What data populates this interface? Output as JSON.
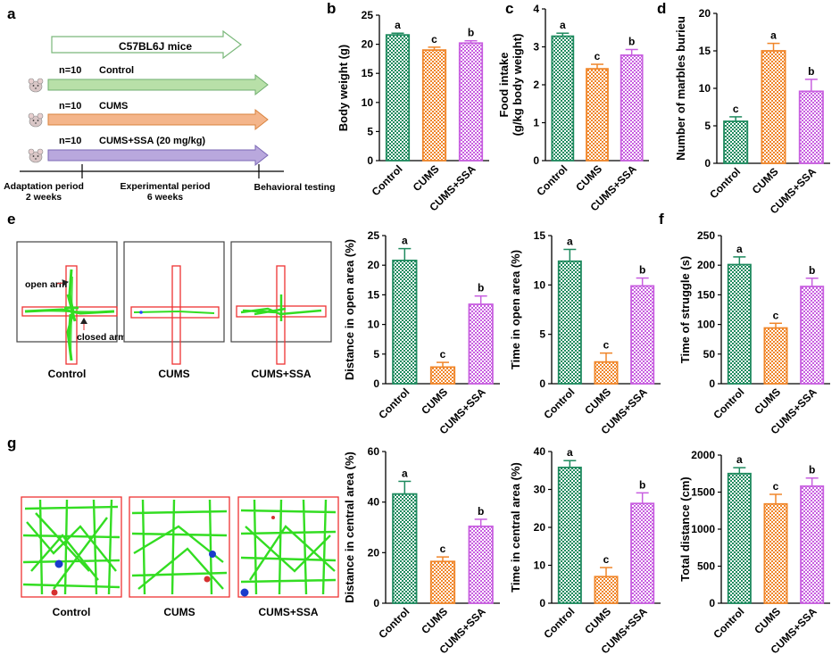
{
  "colors": {
    "control": "#1e8a5e",
    "cums": "#f0862a",
    "ssa": "#c85fe0",
    "arrow_green": "#b8e0a8",
    "arrow_orange": "#f4b58a",
    "arrow_purple": "#b9a8dd",
    "track": "#33dd22"
  },
  "panel_letters": {
    "a": "a",
    "b": "b",
    "c": "c",
    "d": "d",
    "e": "e",
    "f": "f",
    "g": "g"
  },
  "design": {
    "mice_label": "C57BL6J mice",
    "groups": [
      {
        "n": "n=10",
        "name": "Control"
      },
      {
        "n": "n=10",
        "name": "CUMS"
      },
      {
        "n": "n=10",
        "name": "CUMS+SSA (20 mg/kg)"
      }
    ],
    "adaptation_label": "Adaptation period",
    "adaptation_duration": "2 weeks",
    "experimental_label": "Experimental period",
    "experimental_duration": "6 weeks",
    "behavioral_label": "Behavioral testing"
  },
  "maze": {
    "labels": [
      "Control",
      "CUMS",
      "CUMS+SSA"
    ],
    "open_arm": "open arm",
    "closed_arm": "closed arm"
  },
  "open_field": {
    "labels": [
      "Control",
      "CUMS",
      "CUMS+SSA"
    ]
  },
  "chart_data": [
    {
      "id": "b",
      "type": "bar",
      "categories": [
        "Control",
        "CUMS",
        "CUMS+SSA"
      ],
      "values": [
        21.6,
        19.0,
        20.2
      ],
      "errors": [
        0.3,
        0.5,
        0.4
      ],
      "letters": [
        "a",
        "c",
        "b"
      ],
      "ylabel": "Body weight (g)",
      "ylim": [
        0,
        25
      ],
      "ticks": [
        0,
        5,
        10,
        15,
        20,
        25
      ]
    },
    {
      "id": "c",
      "type": "bar",
      "categories": [
        "Control",
        "CUMS",
        "CUMS+SSA"
      ],
      "values": [
        3.28,
        2.42,
        2.78
      ],
      "errors": [
        0.08,
        0.12,
        0.15
      ],
      "letters": [
        "a",
        "c",
        "b"
      ],
      "ylabel": "Food intake",
      "ylabel2": "(g/kg body weight)",
      "ylim": [
        0,
        4
      ],
      "ticks": [
        0,
        1,
        2,
        3,
        4
      ]
    },
    {
      "id": "d",
      "type": "bar",
      "categories": [
        "Control",
        "CUMS",
        "CUMS+SSA"
      ],
      "values": [
        5.6,
        15.0,
        9.6
      ],
      "errors": [
        0.6,
        1.0,
        1.6
      ],
      "letters": [
        "c",
        "a",
        "b"
      ],
      "ylabel": "Number of marbles burieu",
      "ylim": [
        0,
        20
      ],
      "ticks": [
        0,
        5,
        10,
        15,
        20
      ]
    },
    {
      "id": "e1",
      "type": "bar",
      "categories": [
        "Control",
        "CUMS",
        "CUMS+SSA"
      ],
      "values": [
        20.8,
        2.8,
        13.4
      ],
      "errors": [
        2.0,
        0.8,
        1.4
      ],
      "letters": [
        "a",
        "c",
        "b"
      ],
      "ylabel": "Distance in open area  (%)",
      "ylim": [
        0,
        25
      ],
      "ticks": [
        0,
        5,
        10,
        15,
        20,
        25
      ]
    },
    {
      "id": "e2",
      "type": "bar",
      "categories": [
        "Control",
        "CUMS",
        "CUMS+SSA"
      ],
      "values": [
        12.4,
        2.2,
        9.9
      ],
      "errors": [
        1.2,
        0.9,
        0.8
      ],
      "letters": [
        "a",
        "c",
        "b"
      ],
      "ylabel": "Time in open area  (%)",
      "ylim": [
        0,
        15
      ],
      "ticks": [
        0,
        5,
        10,
        15
      ]
    },
    {
      "id": "f",
      "type": "bar",
      "categories": [
        "Control",
        "CUMS",
        "CUMS+SSA"
      ],
      "values": [
        201,
        94,
        164
      ],
      "errors": [
        13,
        8,
        14
      ],
      "letters": [
        "a",
        "c",
        "b"
      ],
      "ylabel": "Time of struggle (s)",
      "ylim": [
        0,
        250
      ],
      "ticks": [
        0,
        50,
        100,
        150,
        200,
        250
      ]
    },
    {
      "id": "g1",
      "type": "bar",
      "categories": [
        "Control",
        "CUMS",
        "CUMS+SSA"
      ],
      "values": [
        43.2,
        16.5,
        30.4
      ],
      "errors": [
        5.0,
        1.8,
        2.8
      ],
      "letters": [
        "a",
        "c",
        "b"
      ],
      "ylabel": "Distance in central area  (%)",
      "ylim": [
        0,
        60
      ],
      "ticks": [
        0,
        20,
        40,
        60
      ]
    },
    {
      "id": "g2",
      "type": "bar",
      "categories": [
        "Control",
        "CUMS",
        "CUMS+SSA"
      ],
      "values": [
        35.8,
        7.0,
        26.3
      ],
      "errors": [
        1.8,
        2.4,
        2.8
      ],
      "letters": [
        "a",
        "c",
        "b"
      ],
      "ylabel": "Time in central area  (%)",
      "ylim": [
        0,
        40
      ],
      "ticks": [
        0,
        10,
        20,
        30,
        40
      ]
    },
    {
      "id": "g3",
      "type": "bar",
      "categories": [
        "Control",
        "CUMS",
        "CUMS+SSA"
      ],
      "values": [
        1750,
        1340,
        1580
      ],
      "errors": [
        80,
        130,
        110
      ],
      "letters": [
        "a",
        "c",
        "b"
      ],
      "ylabel": "Total distance (cm)",
      "ylim": [
        0,
        2000
      ],
      "ticks": [
        0,
        500,
        1000,
        1500,
        2000
      ]
    }
  ]
}
